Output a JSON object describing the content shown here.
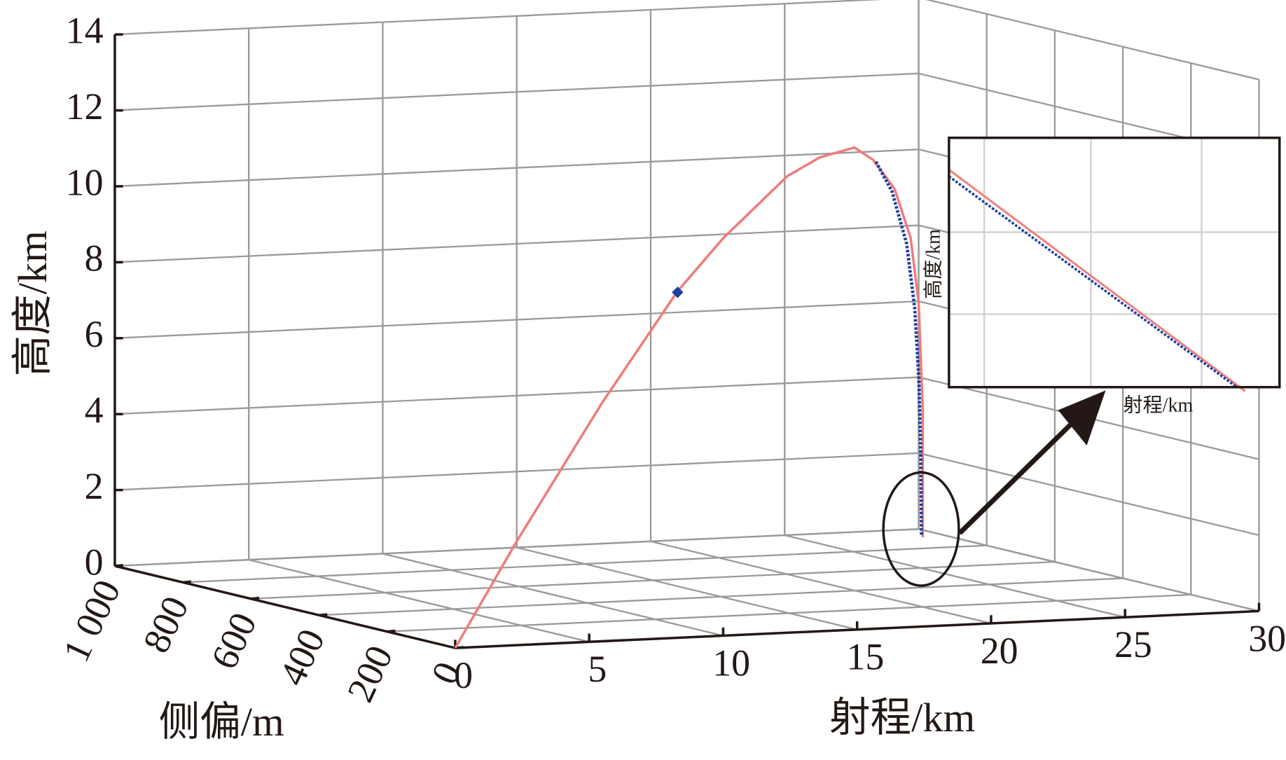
{
  "chart_data": [
    {
      "type": "line3d",
      "xlabel": "射程/km",
      "ylabel": "侧偏/m",
      "zlabel": "高度/km",
      "xlim": [
        0,
        30
      ],
      "ylim": [
        0,
        1000
      ],
      "zlim": [
        0,
        14
      ],
      "xticks": [
        0,
        5,
        10,
        15,
        20,
        25,
        30
      ],
      "yticks": [
        0,
        200,
        400,
        600,
        800,
        {
          "value": 1000,
          "label": "1 000"
        }
      ],
      "zticks": [
        0,
        2,
        4,
        6,
        8,
        10,
        12,
        14
      ],
      "grid": true,
      "series": [
        {
          "color": "#f07b7b",
          "style": "solid",
          "x": [
            0,
            2.3,
            5.5,
            8.3,
            10,
            12.4,
            13.6,
            14.9,
            15.6,
            16.4,
            17,
            17.3,
            17.45,
            17.45
          ],
          "y": [
            0,
            0,
            0,
            0,
            0,
            0,
            0,
            0,
            0,
            0,
            0,
            0,
            0,
            0
          ],
          "z": [
            0,
            2.74,
            6.3,
            9.13,
            10.47,
            12.03,
            12.48,
            12.7,
            12.35,
            11.56,
            10.25,
            8.51,
            5.7,
            2.35
          ]
        },
        {
          "color": "#1f3f9f",
          "style": "dotted",
          "x": [
            15.7,
            16.3,
            16.85,
            17.15,
            17.3,
            17.38,
            17.4
          ],
          "y": [
            0,
            0,
            0,
            0,
            0,
            0,
            0
          ],
          "z": [
            12.3,
            11.5,
            10.1,
            8.4,
            6.6,
            4.5,
            2.4
          ]
        }
      ],
      "marker": {
        "x": 8.3,
        "y": 0,
        "z": 9.1,
        "color": "#1f3f9f"
      }
    },
    {
      "type": "line",
      "xlabel": "射程/km",
      "ylabel": "高度/km",
      "xlim": [
        0,
        1
      ],
      "ylim": [
        0,
        1
      ],
      "series": [
        {
          "color": "#f07b7b",
          "style": "solid",
          "x": [
            0,
            0.896
          ],
          "values": [
            0.872,
            -0.016
          ]
        },
        {
          "color": "#1f3f9f",
          "style": "dotted",
          "x": [
            0,
            0.871
          ],
          "values": [
            0.845,
            0
          ]
        }
      ]
    }
  ]
}
